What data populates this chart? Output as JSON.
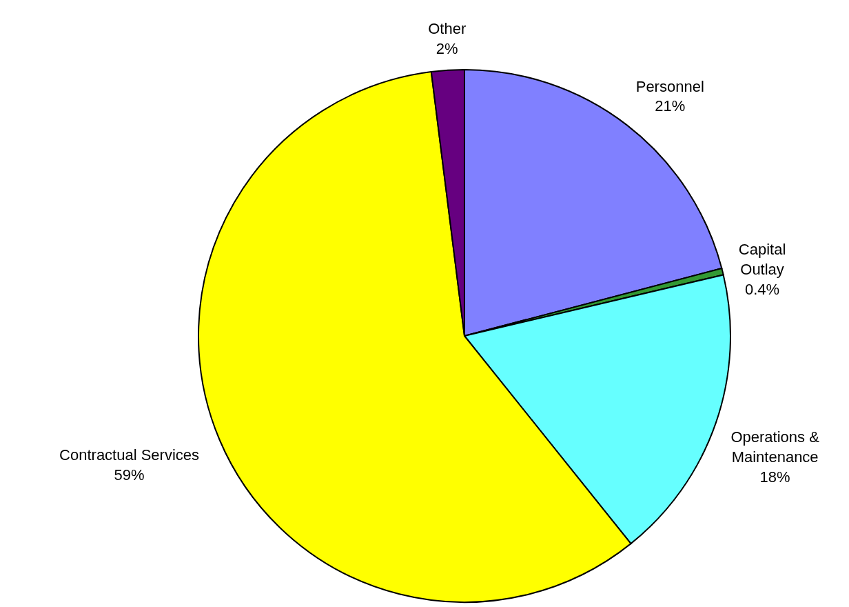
{
  "chart_data": {
    "type": "pie",
    "categories": [
      "Personnel",
      "Capital Outlay",
      "Operations & Maintenance",
      "Contractual Services",
      "Other"
    ],
    "values": [
      21,
      0.4,
      18,
      59,
      2
    ],
    "value_labels": [
      "21%",
      "0.4%",
      "18%",
      "59%",
      "2%"
    ],
    "colors": [
      "#8080ff",
      "#339933",
      "#66ffff",
      "#ffff00",
      "#660080"
    ],
    "legend": false
  }
}
